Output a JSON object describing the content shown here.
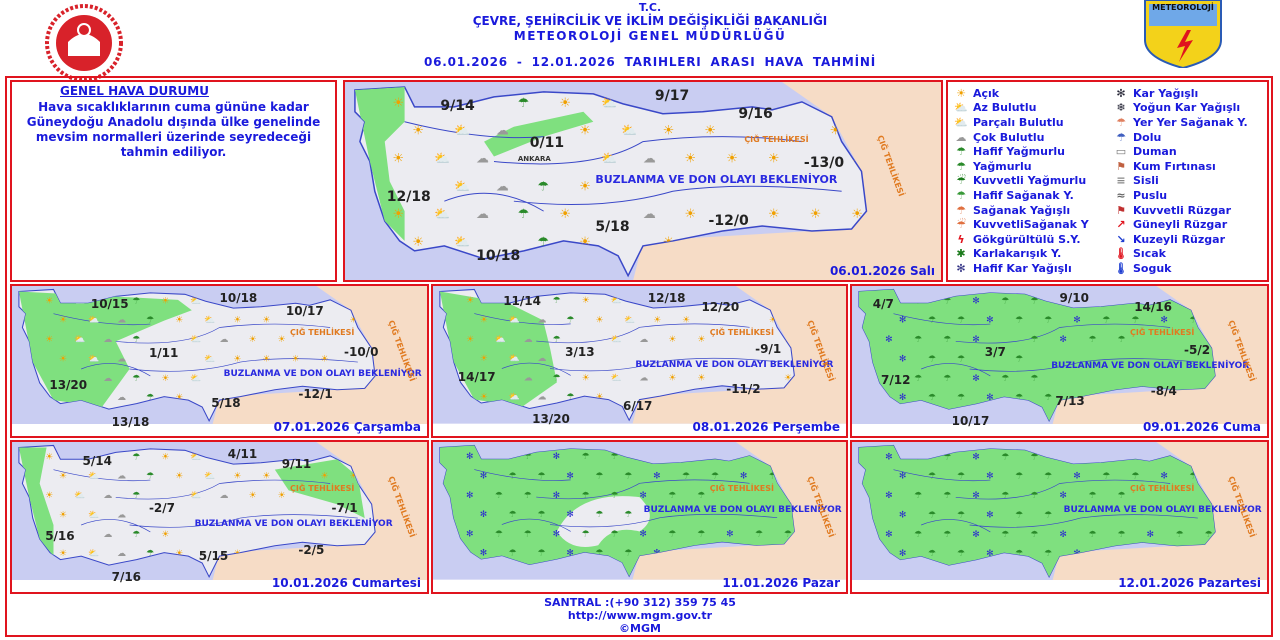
{
  "header": {
    "tc": "T.C.",
    "ministry": "ÇEVRE, ŞEHİRCİLİK VE İKLİM DEĞİŞİKLİĞİ BAKANLIĞI",
    "directorate": "METEOROLOJİ GENEL MÜDÜRLÜĞÜ",
    "period": "06.01.2026 - 12.01.2026 TARIHLERI ARASI HAVA TAHMİNİ",
    "logo_right": "METEOROLOJİ"
  },
  "general": {
    "title": "GENEL HAVA DURUMU",
    "text": "Hava sıcaklıklarının cuma gününe kadar Güneydoğu Anadolu dışında ülke genelinde mevsim normalleri üzerinde seyredeceği tahmin ediliyor."
  },
  "legend": [
    {
      "label": "Açık",
      "icon": "sun"
    },
    {
      "label": "Kar Yağışlı",
      "icon": "snow"
    },
    {
      "label": "Az Bulutlu",
      "icon": "sun-cloud"
    },
    {
      "label": "Yoğun Kar Yağışlı",
      "icon": "heavy-snow"
    },
    {
      "label": "Parçalı Bulutlu",
      "icon": "partly-cloudy"
    },
    {
      "label": "Yer Yer Sağanak Y.",
      "icon": "scattered-showers"
    },
    {
      "label": "Çok Bulutlu",
      "icon": "cloudy"
    },
    {
      "label": "Dolu",
      "icon": "hail"
    },
    {
      "label": "Hafif Yağmurlu",
      "icon": "light-rain"
    },
    {
      "label": "Duman",
      "icon": "smoke"
    },
    {
      "label": "Yağmurlu",
      "icon": "rain"
    },
    {
      "label": "Kum Fırtınası",
      "icon": "sandstorm"
    },
    {
      "label": "Kuvvetli Yağmurlu",
      "icon": "heavy-rain"
    },
    {
      "label": "Sisli",
      "icon": "fog"
    },
    {
      "label": "Hafif Sağanak Y.",
      "icon": "light-shower"
    },
    {
      "label": "Puslu",
      "icon": "haze"
    },
    {
      "label": "Sağanak Yağışlı",
      "icon": "shower"
    },
    {
      "label": "Kuvvetli Rüzgar",
      "icon": "strong-wind"
    },
    {
      "label": "KuvvetliSağanak Y",
      "icon": "heavy-shower"
    },
    {
      "label": "Güneyli Rüzgar",
      "icon": "south-wind-arrow"
    },
    {
      "label": "Gökgürültülü S.Y.",
      "icon": "thunderstorm"
    },
    {
      "label": "Kuzeyli Rüzgar",
      "icon": "north-wind-arrow"
    },
    {
      "label": "Karlakarışık Y.",
      "icon": "sleet"
    },
    {
      "label": "Sıcak",
      "icon": "hot"
    },
    {
      "label": "Hafif Kar Yağışlı",
      "icon": "light-snow"
    },
    {
      "label": "Soguk",
      "icon": "cold"
    }
  ],
  "notes": {
    "buzlanma": "BUZLANMA VE DON OLAYI BEKLENİYOR",
    "cig": "ÇIĞ TEHLİKESİ"
  },
  "maps": [
    {
      "date": "06.01.2026 Salı",
      "temps": [
        "9/14",
        "9/17",
        "9/16",
        "0/11",
        "-13/0",
        "12/18",
        "5/18",
        "-12/0",
        "10/18"
      ],
      "places": [
        "ANKARA"
      ]
    },
    {
      "date": "07.01.2026 Çarşamba",
      "temps": [
        "10/15",
        "10/18",
        "10/17",
        "1/11",
        "-10/0",
        "13/20",
        "5/18",
        "-12/1",
        "13/18"
      ]
    },
    {
      "date": "08.01.2026 Perşembe",
      "temps": [
        "11/14",
        "12/18",
        "12/20",
        "3/13",
        "-9/1",
        "14/17",
        "-11/2",
        "6/17",
        "13/20"
      ]
    },
    {
      "date": "09.01.2026 Cuma",
      "temps": [
        "4/7",
        "9/10",
        "14/16",
        "3/7",
        "-5/2",
        "7/12",
        "-8/4",
        "7/13",
        "10/17"
      ]
    },
    {
      "date": "10.01.2026 Cumartesi",
      "temps": [
        "5/14",
        "4/11",
        "9/11",
        "-2/7",
        "-7/1",
        "5/16",
        "5/15",
        "-2/5",
        "7/16"
      ]
    },
    {
      "date": "11.01.2026 Pazar",
      "temps": []
    },
    {
      "date": "12.01.2026 Pazartesi",
      "temps": []
    }
  ],
  "colors": {
    "border": "#e0141e",
    "text": "#1a1adc",
    "sea": "#c9cdf2",
    "land": "#ececf1",
    "rain_area": "#7fe07f",
    "neighbor": "#f6dcc6"
  },
  "footer": {
    "phone": "SANTRAL :(+90 312) 359 75 45",
    "url": "http://www.mgm.gov.tr",
    "copyright": "©MGM"
  }
}
